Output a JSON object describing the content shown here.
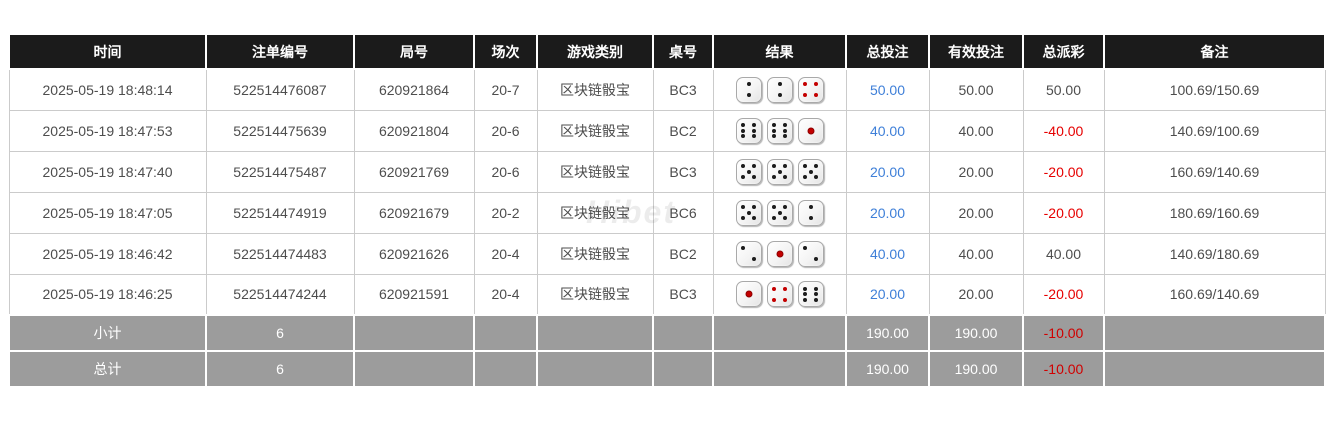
{
  "watermark": "Hibet",
  "colors": {
    "header_bg": "#1b1b1b",
    "footer_bg": "#9c9c9c",
    "accent_blue": "#3e7fd8",
    "negative_red": "#e60000",
    "footer_negative_red": "#d10000",
    "grid_border": "#cbcbcb"
  },
  "table": {
    "columns": [
      {
        "key": "time",
        "label": "时间"
      },
      {
        "key": "bet_id",
        "label": "注单编号"
      },
      {
        "key": "round_no",
        "label": "局号"
      },
      {
        "key": "session",
        "label": "场次"
      },
      {
        "key": "game_type",
        "label": "游戏类别"
      },
      {
        "key": "table_no",
        "label": "桌号"
      },
      {
        "key": "result",
        "label": "结果"
      },
      {
        "key": "total_bet",
        "label": "总投注"
      },
      {
        "key": "valid_bet",
        "label": "有效投注"
      },
      {
        "key": "total_payout",
        "label": "总派彩"
      },
      {
        "key": "remark",
        "label": "备注"
      }
    ],
    "rows": [
      {
        "time": "2025-05-19 18:48:14",
        "bet_id": "522514476087",
        "round_no": "620921864",
        "session": "20-7",
        "game_type": "区块链骰宝",
        "table_no": "BC3",
        "dice": [
          "2v",
          "2v",
          "4"
        ],
        "total_bet": "50.00",
        "valid_bet": "50.00",
        "total_payout": "50.00",
        "remark": "100.69/150.69"
      },
      {
        "time": "2025-05-19 18:47:53",
        "bet_id": "522514475639",
        "round_no": "620921804",
        "session": "20-6",
        "game_type": "区块链骰宝",
        "table_no": "BC2",
        "dice": [
          "6",
          "6",
          "1"
        ],
        "total_bet": "40.00",
        "valid_bet": "40.00",
        "total_payout": "-40.00",
        "remark": "140.69/100.69"
      },
      {
        "time": "2025-05-19 18:47:40",
        "bet_id": "522514475487",
        "round_no": "620921769",
        "session": "20-6",
        "game_type": "区块链骰宝",
        "table_no": "BC3",
        "dice": [
          "5",
          "5",
          "5"
        ],
        "total_bet": "20.00",
        "valid_bet": "20.00",
        "total_payout": "-20.00",
        "remark": "160.69/140.69"
      },
      {
        "time": "2025-05-19 18:47:05",
        "bet_id": "522514474919",
        "round_no": "620921679",
        "session": "20-2",
        "game_type": "区块链骰宝",
        "table_no": "BC6",
        "dice": [
          "5",
          "5",
          "2v"
        ],
        "total_bet": "20.00",
        "valid_bet": "20.00",
        "total_payout": "-20.00",
        "remark": "180.69/160.69"
      },
      {
        "time": "2025-05-19 18:46:42",
        "bet_id": "522514474483",
        "round_no": "620921626",
        "session": "20-4",
        "game_type": "区块链骰宝",
        "table_no": "BC2",
        "dice": [
          "2d",
          "1",
          "2d"
        ],
        "total_bet": "40.00",
        "valid_bet": "40.00",
        "total_payout": "40.00",
        "remark": "140.69/180.69"
      },
      {
        "time": "2025-05-19 18:46:25",
        "bet_id": "522514474244",
        "round_no": "620921591",
        "session": "20-4",
        "game_type": "区块链骰宝",
        "table_no": "BC3",
        "dice": [
          "1",
          "4",
          "6"
        ],
        "total_bet": "20.00",
        "valid_bet": "20.00",
        "total_payout": "-20.00",
        "remark": "160.69/140.69"
      }
    ],
    "footer": [
      {
        "label": "小计",
        "count": "6",
        "total_bet": "190.00",
        "valid_bet": "190.00",
        "total_payout": "-10.00"
      },
      {
        "label": "总计",
        "count": "6",
        "total_bet": "190.00",
        "valid_bet": "190.00",
        "total_payout": "-10.00"
      }
    ]
  }
}
